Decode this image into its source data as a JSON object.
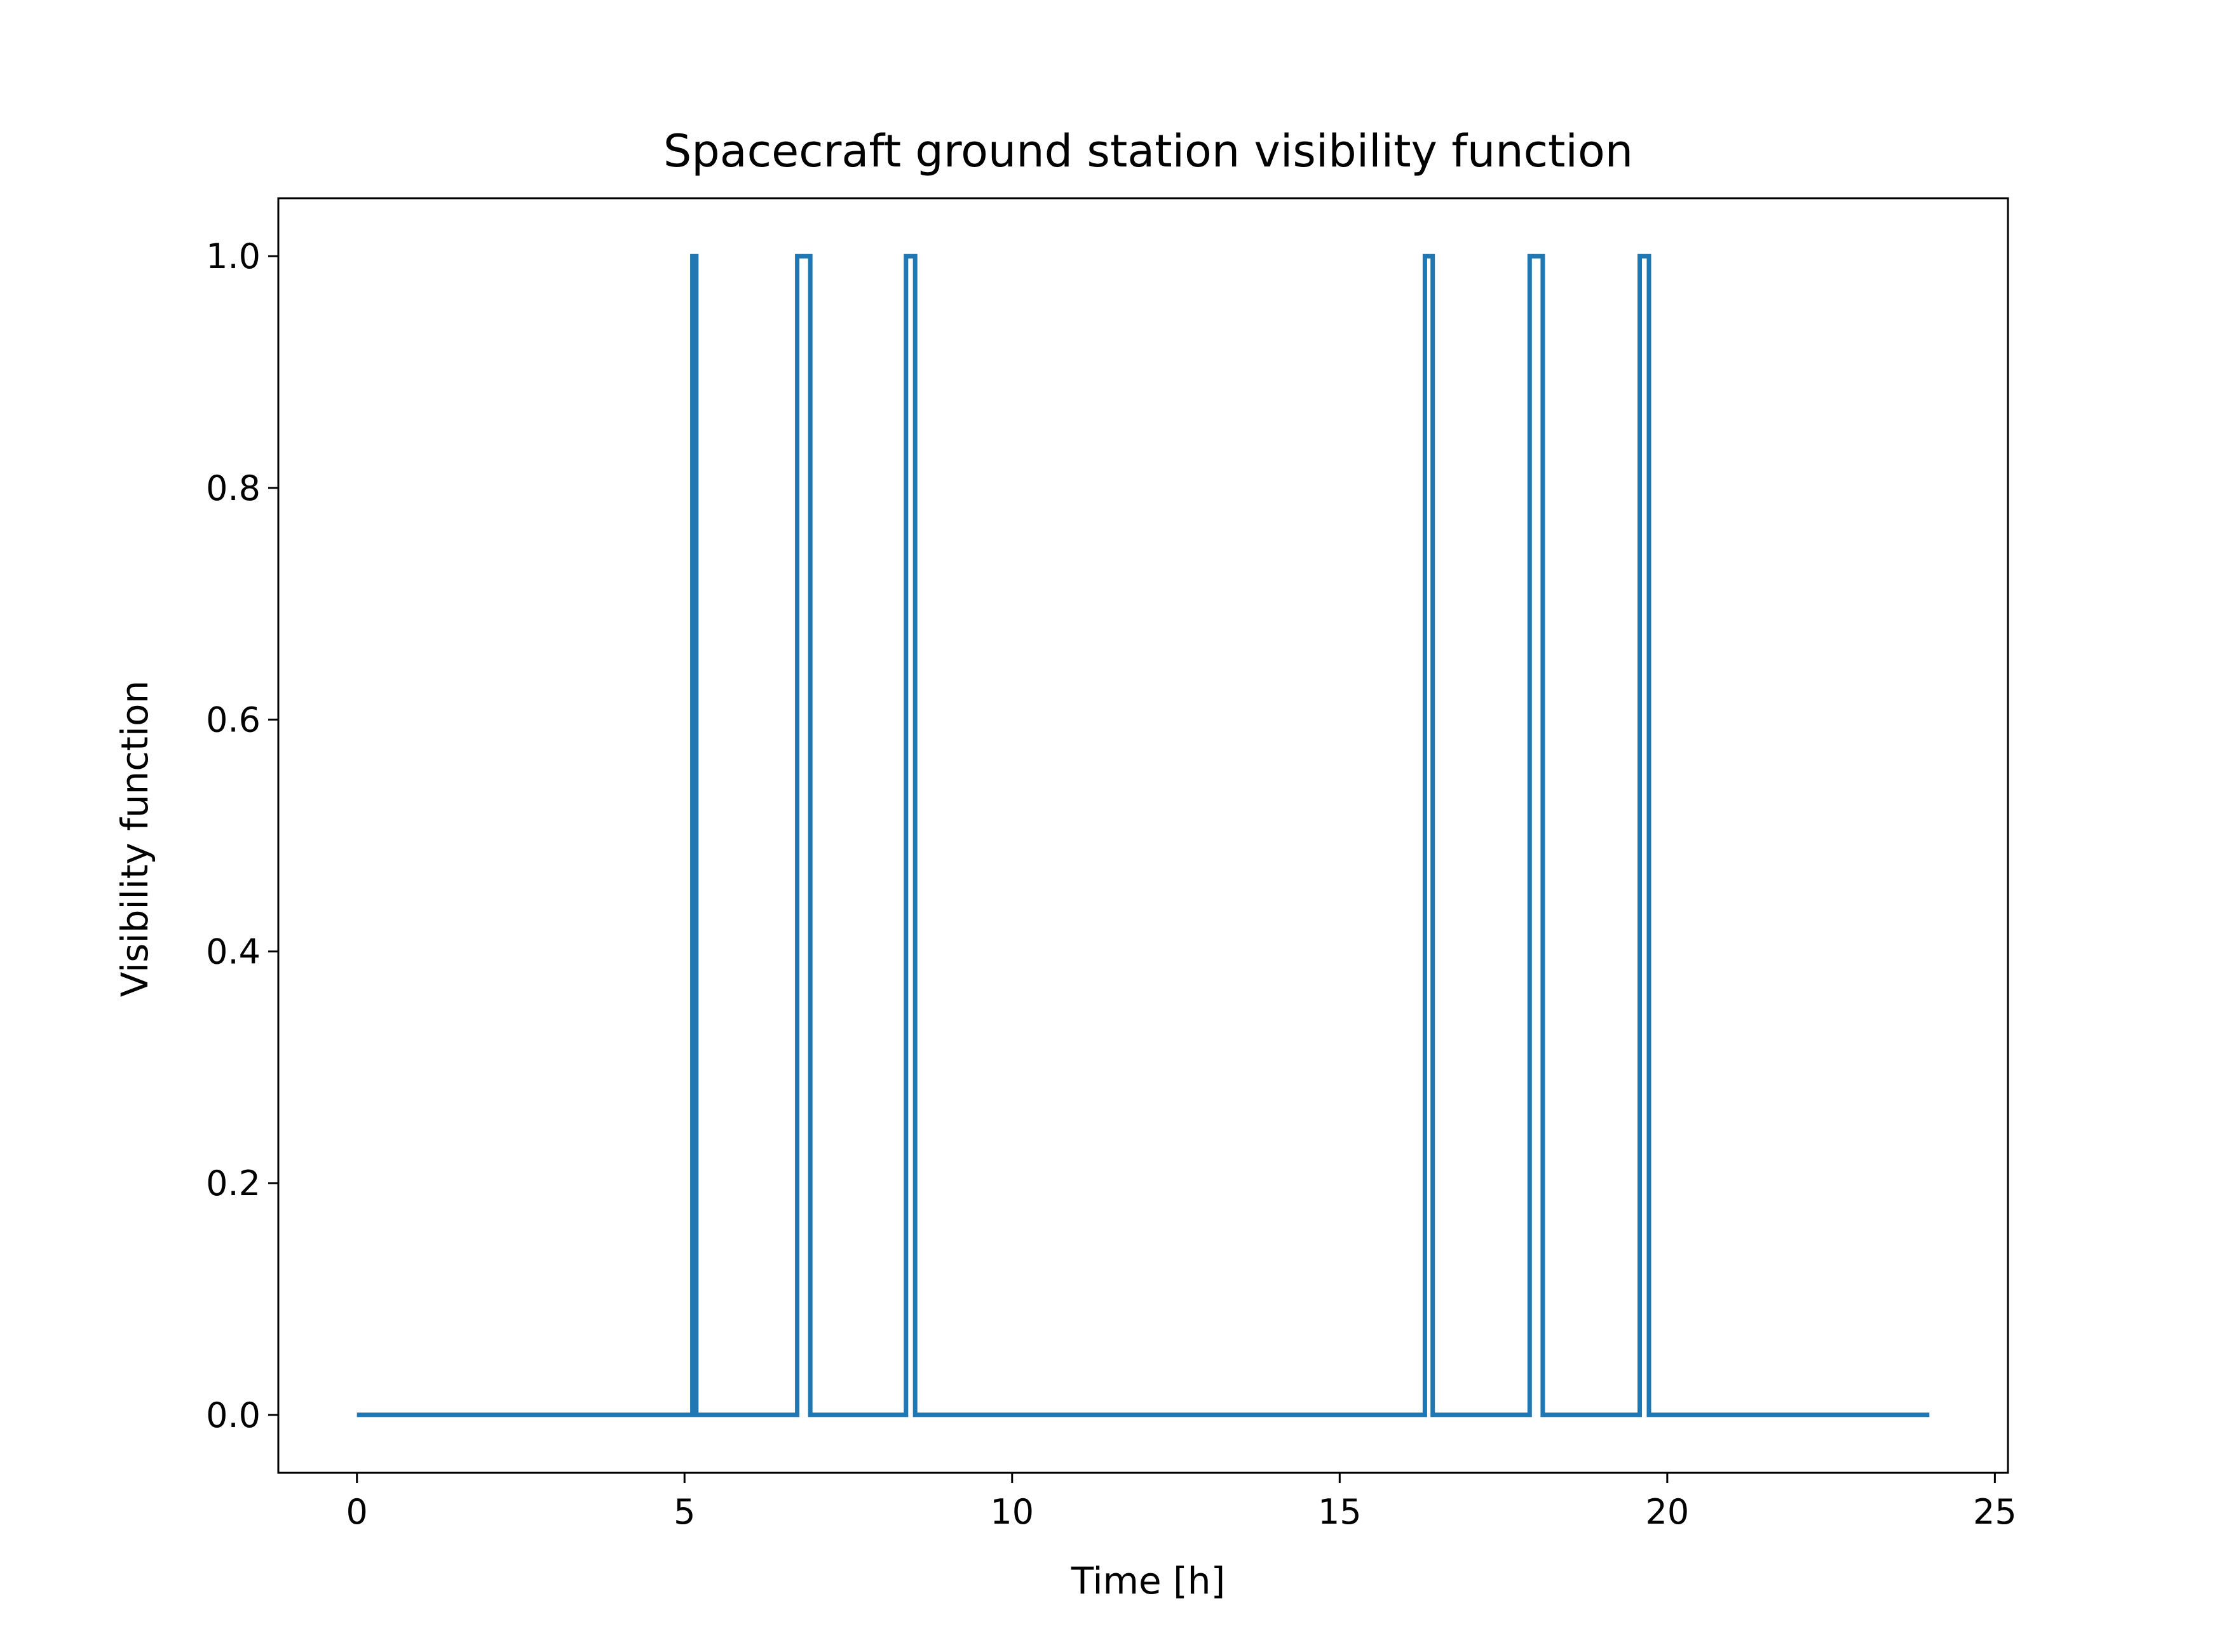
{
  "chart_data": {
    "type": "line",
    "title": "Spacecraft ground station visibility function",
    "xlabel": "Time [h]",
    "ylabel": "Visibility function",
    "xlim": [
      -1.2,
      25.2
    ],
    "ylim": [
      -0.05,
      1.05
    ],
    "xticks": [
      0,
      5,
      10,
      15,
      20,
      25
    ],
    "yticks": [
      0.0,
      0.2,
      0.4,
      0.6,
      0.8,
      1.0
    ],
    "xtick_labels": [
      "0",
      "5",
      "10",
      "15",
      "20",
      "25"
    ],
    "ytick_labels": [
      "0.0",
      "0.2",
      "0.4",
      "0.6",
      "0.8",
      "1.0"
    ],
    "grid": false,
    "line_color": "#1f77b4",
    "series": [
      {
        "x": [
          0,
          5.12,
          5.12,
          5.18,
          5.18,
          6.72,
          6.72,
          6.92,
          6.92,
          8.38,
          8.38,
          8.52,
          8.52,
          16.3,
          16.3,
          16.42,
          16.42,
          17.9,
          17.9,
          18.1,
          18.1,
          19.58,
          19.58,
          19.72,
          19.72,
          24
        ],
        "y": [
          0,
          0,
          1,
          1,
          0,
          0,
          1,
          1,
          0,
          0,
          1,
          1,
          0,
          0,
          1,
          1,
          0,
          0,
          1,
          1,
          0,
          0,
          1,
          1,
          0,
          0
        ]
      }
    ]
  }
}
